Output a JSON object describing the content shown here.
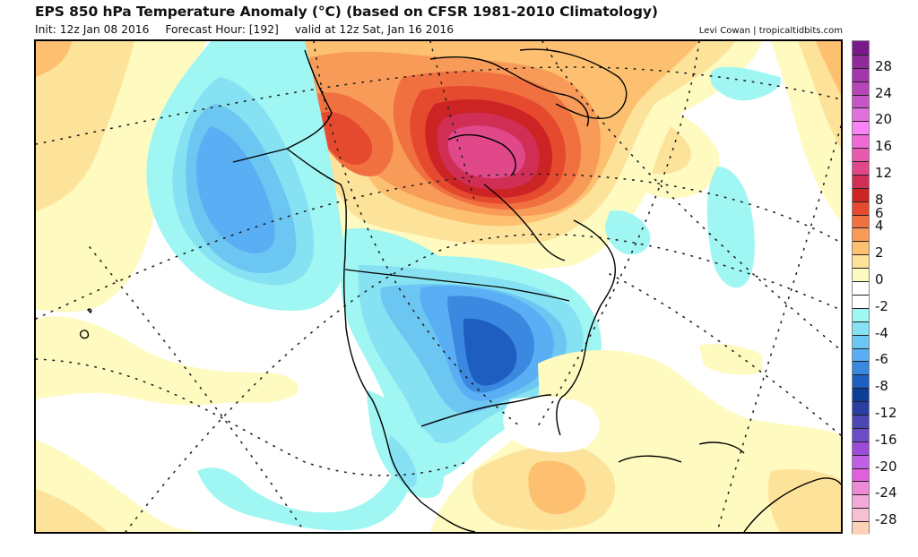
{
  "header": {
    "title": "EPS 850 hPa Temperature Anomaly (°C) (based on CFSR 1981-2010 Climatology)",
    "init": "Init: 12z Jan 08 2016",
    "forecast_hour": "Forecast Hour: [192]",
    "valid": "valid at 12z Sat, Jan 16 2016",
    "credit": "Levi Cowan | tropicaltidbits.com"
  },
  "map": {
    "variable": "850 hPa Temperature Anomaly",
    "units": "°C",
    "model": "EPS",
    "region": "North America",
    "features": [
      {
        "name": "warm-anomaly-canadian-arctic",
        "max_anomaly_c": 14
      },
      {
        "name": "warm-anomaly-alaska-yukon",
        "max_anomaly_c": 9
      },
      {
        "name": "cold-anomaly-central-us",
        "min_anomaly_c": -9
      },
      {
        "name": "cold-anomaly-northeast-pacific",
        "min_anomaly_c": -5
      },
      {
        "name": "warm-anomaly-yucatan-caribbean",
        "max_anomaly_c": 5
      }
    ]
  },
  "colorbar": {
    "levels": [
      {
        "color": "#7a1a8a"
      },
      {
        "color": "#8e2a9a"
      },
      {
        "color": "#a236aa"
      },
      {
        "color": "#b646b8"
      },
      {
        "color": "#c656c6"
      },
      {
        "color": "#e070dc"
      },
      {
        "color": "#fa84f6"
      },
      {
        "color": "#f06ad6"
      },
      {
        "color": "#e859b0"
      },
      {
        "color": "#e0488a"
      },
      {
        "color": "#d02e54"
      },
      {
        "color": "#cc2424"
      },
      {
        "color": "#e64a2e"
      },
      {
        "color": "#f07040"
      },
      {
        "color": "#f89a58"
      },
      {
        "color": "#fcc070"
      },
      {
        "color": "#fde29a"
      },
      {
        "color": "#fefac0"
      },
      {
        "color": "#ffffff"
      },
      {
        "color": "#ffffff"
      },
      {
        "color": "#a0f6f2"
      },
      {
        "color": "#86e2f2"
      },
      {
        "color": "#6cc6f2"
      },
      {
        "color": "#5aaef4"
      },
      {
        "color": "#3a88e0"
      },
      {
        "color": "#1e5ec0"
      },
      {
        "color": "#0c3e98"
      },
      {
        "color": "#2a3ea4"
      },
      {
        "color": "#4a46b4"
      },
      {
        "color": "#6a4cc4"
      },
      {
        "color": "#9a4cd8"
      },
      {
        "color": "#c060e4"
      },
      {
        "color": "#e060dc"
      },
      {
        "color": "#ec8ad6"
      },
      {
        "color": "#f2aad8"
      },
      {
        "color": "#f6c0d4"
      },
      {
        "color": "#fed2b8"
      }
    ],
    "tick_labels": [
      "28",
      "24",
      "20",
      "16",
      "12",
      "8",
      "6",
      "4",
      "2",
      "0",
      "-2",
      "-4",
      "-6",
      "-8",
      "-12",
      "-16",
      "-20",
      "-24",
      "-28"
    ],
    "tick_boundary_index": [
      2,
      4,
      6,
      8,
      10,
      12,
      13,
      14,
      16,
      18,
      20,
      22,
      24,
      26,
      28,
      30,
      32,
      34,
      36
    ]
  },
  "palette": {
    "w1": "#fefac0",
    "w2": "#fde29a",
    "w3": "#fcc070",
    "w4": "#f89a58",
    "w5": "#f07040",
    "w6": "#e64a2e",
    "w7": "#cc2424",
    "w8": "#d02e54",
    "w9": "#e0488a",
    "c1": "#a0f6f2",
    "c2": "#86e2f2",
    "c3": "#6cc6f2",
    "c4": "#5aaef4",
    "c5": "#3a88e0",
    "c6": "#1e5ec0",
    "line": "#000000",
    "border": "#555555"
  }
}
